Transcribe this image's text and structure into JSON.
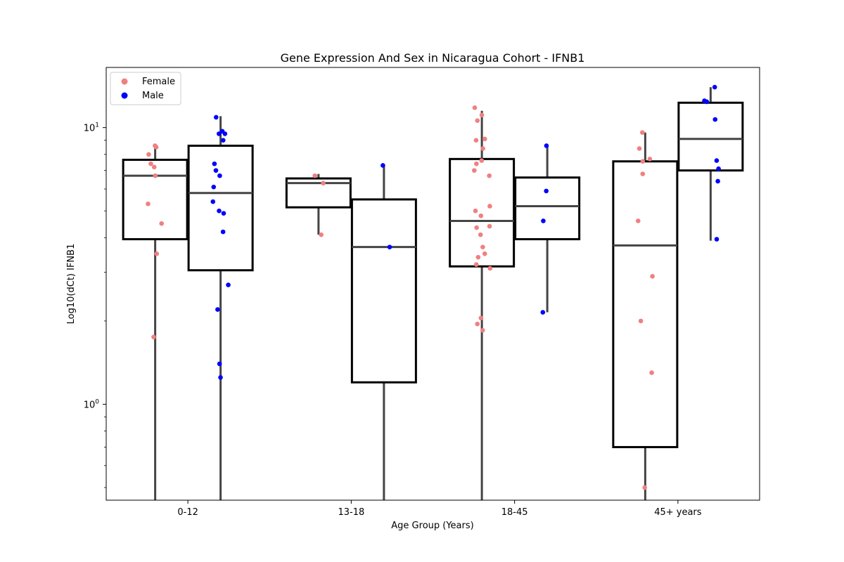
{
  "chart_data": {
    "type": "box",
    "title": "Gene Expression And Sex in Nicaragua Cohort - IFNB1",
    "xlabel": "Age Group (Years)",
    "ylabel": "Log10(dCt) IFNB1",
    "y_scale": "log",
    "ylim": [
      0.45,
      16.5
    ],
    "y_major_ticks": [
      1,
      10
    ],
    "y_major_tick_labels": [
      {
        "base": "10",
        "exp": "0"
      },
      {
        "base": "10",
        "exp": "1"
      }
    ],
    "y_minor_ticks": [
      0.5,
      0.6,
      0.7,
      0.8,
      0.9,
      2,
      3,
      4,
      5,
      6,
      7,
      8,
      9
    ],
    "categories": [
      "0-12",
      "13-18",
      "18-45",
      "45+ years"
    ],
    "legend": {
      "position": "upper-left",
      "entries": [
        "Female",
        "Male"
      ]
    },
    "colors": {
      "Female": "#f08080",
      "Male": "#0000ff",
      "box_edge": "#000000",
      "median": "#444444",
      "whisker": "#444444"
    },
    "series": [
      {
        "name": "Female",
        "color": "#f08080",
        "boxes": [
          {
            "category": "0-12",
            "q1": 3.95,
            "median": 6.7,
            "q3": 7.65,
            "whisker_low": 0.45,
            "whisker_high": 8.65
          },
          {
            "category": "13-18",
            "q1": 5.15,
            "median": 6.3,
            "q3": 6.55,
            "whisker_low": 4.1,
            "whisker_high": 6.8
          },
          {
            "category": "18-45",
            "q1": 3.15,
            "median": 4.6,
            "q3": 7.7,
            "whisker_low": 0.45,
            "whisker_high": 11.5
          },
          {
            "category": "45+ years",
            "q1": 0.7,
            "median": 3.75,
            "q3": 7.55,
            "whisker_low": 0.45,
            "whisker_high": 9.6
          }
        ],
        "points": [
          {
            "category": "0-12",
            "values": [
              8.6,
              8.5,
              8.0,
              7.4,
              7.2,
              6.7,
              5.3,
              4.5,
              3.5,
              1.75
            ]
          },
          {
            "category": "13-18",
            "values": [
              6.7,
              6.3,
              4.1
            ]
          },
          {
            "category": "18-45",
            "values": [
              11.8,
              11.1,
              10.6,
              9.1,
              9.0,
              8.4,
              7.6,
              7.4,
              7.0,
              6.7,
              5.2,
              5.0,
              4.8,
              4.4,
              4.35,
              4.1,
              3.7,
              3.5,
              3.4,
              3.2,
              3.1,
              2.05,
              1.95,
              1.85
            ]
          },
          {
            "category": "45+ years",
            "values": [
              9.6,
              8.4,
              7.7,
              7.55,
              6.8,
              4.6,
              2.9,
              2.0,
              1.3,
              0.5
            ]
          }
        ]
      },
      {
        "name": "Male",
        "color": "#0000ff",
        "boxes": [
          {
            "category": "0-12",
            "q1": 3.05,
            "median": 5.8,
            "q3": 8.6,
            "whisker_low": 0.45,
            "whisker_high": 11.0
          },
          {
            "category": "13-18",
            "q1": 1.2,
            "median": 3.7,
            "q3": 5.5,
            "whisker_low": 0.45,
            "whisker_high": 7.3
          },
          {
            "category": "18-45",
            "q1": 3.95,
            "median": 5.2,
            "q3": 6.6,
            "whisker_low": 2.15,
            "whisker_high": 8.6
          },
          {
            "category": "45+ years",
            "q1": 7.0,
            "median": 9.1,
            "q3": 12.3,
            "whisker_low": 3.9,
            "whisker_high": 14.0
          }
        ],
        "points": [
          {
            "category": "0-12",
            "values": [
              10.9,
              9.7,
              9.5,
              9.5,
              9.0,
              7.4,
              7.0,
              6.7,
              6.1,
              5.4,
              5.0,
              4.9,
              4.2,
              2.7,
              2.2,
              1.4,
              1.25
            ]
          },
          {
            "category": "13-18",
            "values": [
              7.3,
              3.7
            ]
          },
          {
            "category": "18-45",
            "values": [
              8.6,
              5.9,
              4.6,
              2.15
            ]
          },
          {
            "category": "45+ years",
            "values": [
              14.0,
              12.5,
              12.4,
              10.7,
              7.6,
              7.1,
              6.4,
              3.95
            ]
          }
        ]
      }
    ]
  }
}
